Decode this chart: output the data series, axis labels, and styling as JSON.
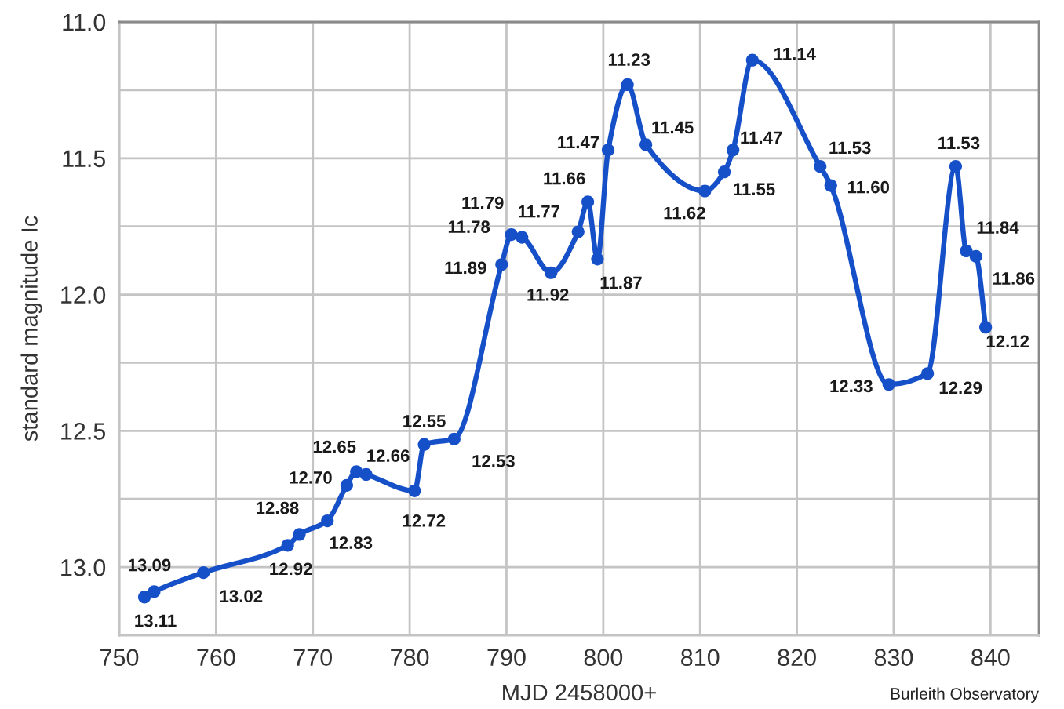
{
  "chart_data": {
    "type": "line",
    "xlabel": "MJD 2458000+",
    "ylabel": "standard magnitude Ic",
    "annotations": [
      "Burleith Observatory"
    ],
    "x": [
      752.6,
      753.6,
      758.7,
      767.4,
      768.6,
      771.5,
      773.5,
      774.5,
      775.5,
      780.5,
      781.5,
      784.6,
      789.5,
      790.5,
      791.6,
      794.6,
      797.4,
      798.4,
      799.4,
      800.5,
      802.5,
      804.4,
      810.5,
      812.5,
      813.4,
      815.4,
      822.4,
      823.5,
      829.5,
      833.5,
      836.4,
      837.5,
      838.5,
      839.5
    ],
    "series": [
      {
        "color": "#1650c8",
        "values": [
          13.11,
          13.09,
          13.02,
          12.92,
          12.88,
          12.83,
          12.7,
          12.65,
          12.66,
          12.72,
          12.55,
          12.53,
          11.89,
          11.78,
          11.79,
          11.92,
          11.77,
          11.66,
          11.87,
          11.47,
          11.23,
          11.45,
          11.62,
          11.55,
          11.47,
          11.14,
          11.53,
          11.6,
          12.33,
          12.29,
          11.53,
          11.84,
          11.86,
          12.12
        ],
        "value_labels": [
          "13.11",
          "13.09",
          "13.02",
          "12.92",
          "12.88",
          "12.83",
          "12.70",
          "12.65",
          "12.66",
          "12.72",
          "12.55",
          "12.53",
          "11.89",
          "11.78",
          "11.79",
          "11.92",
          "11.77",
          "11.66",
          "11.87",
          "11.47",
          "11.23",
          "11.45",
          "11.62",
          "11.55",
          "11.47",
          "11.14",
          "11.53",
          "11.60",
          "12.33",
          "12.29",
          "11.53",
          "11.84",
          "11.86",
          "12.12"
        ]
      }
    ],
    "xlim": [
      750,
      845
    ],
    "xticks": [
      750,
      760,
      770,
      780,
      790,
      800,
      810,
      820,
      830,
      840
    ],
    "ylim": [
      13.25,
      11.0
    ],
    "yticks": [
      {
        "value": 11,
        "label": "11.0"
      },
      {
        "value": 11.25,
        "label": null
      },
      11.5,
      {
        "value": 11.75,
        "label": null
      },
      {
        "value": 12,
        "label": "12.0"
      },
      {
        "value": 12.25,
        "label": null
      },
      12.5,
      {
        "value": 12.75,
        "label": null
      },
      {
        "value": 13,
        "label": "13.0"
      },
      {
        "value": 13.25,
        "label": null
      }
    ],
    "grid": true,
    "marker": "circle",
    "line_style": "solid"
  }
}
